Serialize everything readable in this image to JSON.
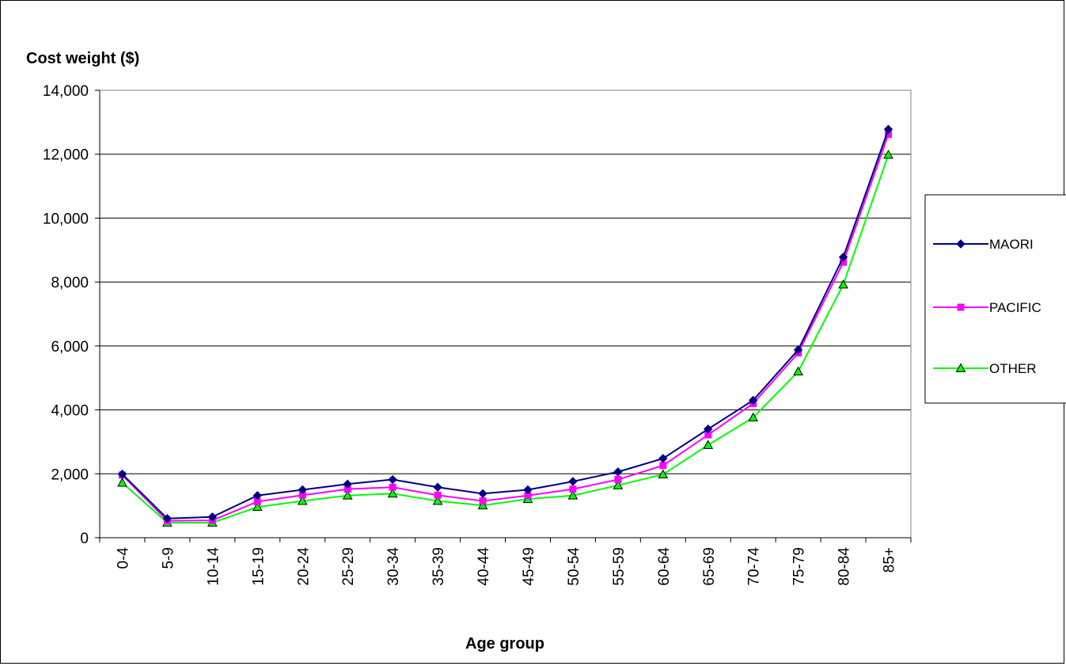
{
  "chart_data": {
    "type": "line",
    "title": "",
    "ylabel": "Cost weight ($)",
    "xlabel": "Age group",
    "ylim": [
      0,
      14000
    ],
    "ytick_step": 2000,
    "ytick_labels": [
      "0",
      "2,000",
      "4,000",
      "6,000",
      "8,000",
      "10,000",
      "12,000",
      "14,000"
    ],
    "grid": "horizontal",
    "legend_position": "right",
    "categories": [
      "0-4",
      "5-9",
      "10-14",
      "15-19",
      "20-24",
      "25-29",
      "30-34",
      "35-39",
      "40-44",
      "45-49",
      "50-54",
      "55-59",
      "60-64",
      "65-69",
      "70-74",
      "75-79",
      "80-84",
      "85+"
    ],
    "series": [
      {
        "name": "MAORI",
        "color": "#000080",
        "marker": "diamond",
        "values": [
          1990,
          600,
          650,
          1320,
          1500,
          1680,
          1820,
          1580,
          1380,
          1500,
          1760,
          2060,
          2480,
          3400,
          4300,
          5880,
          8780,
          12780
        ]
      },
      {
        "name": "PACIFIC",
        "color": "#ff00ff",
        "marker": "square",
        "values": [
          1960,
          530,
          540,
          1130,
          1330,
          1520,
          1580,
          1330,
          1150,
          1320,
          1520,
          1820,
          2260,
          3220,
          4200,
          5780,
          8620,
          12620
        ]
      },
      {
        "name": "OTHER",
        "color": "#00ff00",
        "marker": "triangle",
        "values": [
          1720,
          470,
          470,
          960,
          1150,
          1320,
          1380,
          1150,
          1010,
          1210,
          1320,
          1640,
          1980,
          2900,
          3760,
          5200,
          7920,
          11980
        ]
      }
    ]
  }
}
